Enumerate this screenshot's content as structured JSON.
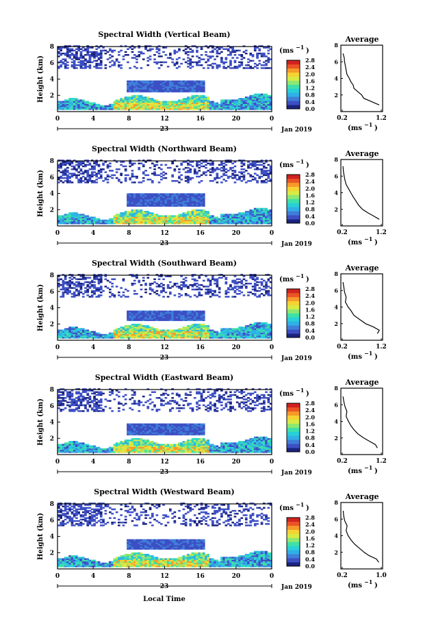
{
  "figure": {
    "xlabel": "Local Time",
    "ylabel": "Height (km)",
    "unit_label": "(ms",
    "unit_exp": "−1",
    "unit_close": ")",
    "date_label": "Jan 2019",
    "day_label": "23",
    "avg_title": "Average",
    "colormap": [
      "#1a237e",
      "#3d4fc4",
      "#3f7fd8",
      "#2fb0e6",
      "#28d0d8",
      "#3fe0a8",
      "#8ee870",
      "#d8ea44",
      "#f6d232",
      "#f69a2a",
      "#ec5426",
      "#d0231f"
    ]
  },
  "chart_data": [
    {
      "type": "heatmap",
      "title": "Spectral Width (Vertical Beam)",
      "xlim": [
        0,
        24
      ],
      "ylim": [
        0,
        8
      ],
      "xticks": [
        "0",
        "4",
        "8",
        "12",
        "16",
        "20",
        "0"
      ],
      "yticks": [
        "2",
        "4",
        "6",
        "8"
      ],
      "colorbar": {
        "ticks": [
          "0.0",
          "0.4",
          "0.8",
          "1.2",
          "1.6",
          "2.0",
          "2.4",
          "2.8"
        ],
        "range": [
          0,
          2.8
        ]
      },
      "profile": {
        "xlim": [
          0.2,
          1.2
        ],
        "xticks": [
          "0.2",
          "1.2"
        ],
        "xlabel": "(ms",
        "yticks": [
          "2",
          "4",
          "6",
          "8"
        ],
        "points": [
          [
            1.15,
            0.8
          ],
          [
            1.05,
            1.0
          ],
          [
            0.9,
            1.3
          ],
          [
            0.75,
            1.6
          ],
          [
            0.7,
            2.0
          ],
          [
            0.6,
            2.4
          ],
          [
            0.5,
            2.8
          ],
          [
            0.48,
            3.2
          ],
          [
            0.42,
            3.6
          ],
          [
            0.38,
            4.0
          ],
          [
            0.32,
            4.5
          ],
          [
            0.3,
            5.0
          ],
          [
            0.28,
            5.5
          ],
          [
            0.26,
            6.0
          ],
          [
            0.25,
            6.5
          ],
          [
            0.22,
            7.0
          ]
        ]
      }
    },
    {
      "type": "heatmap",
      "title": "Spectral Width (Northward Beam)",
      "xlim": [
        0,
        24
      ],
      "ylim": [
        0,
        8
      ],
      "xticks": [
        "0",
        "4",
        "8",
        "12",
        "16",
        "20",
        "0"
      ],
      "yticks": [
        "2",
        "4",
        "6",
        "8"
      ],
      "colorbar": {
        "ticks": [
          "0.0",
          "0.4",
          "0.8",
          "1.2",
          "1.6",
          "2.0",
          "2.4",
          "2.8"
        ],
        "range": [
          0,
          2.8
        ]
      },
      "profile": {
        "xlim": [
          0.2,
          1.2
        ],
        "xticks": [
          "0.2",
          "1.2"
        ],
        "xlabel": "(ms",
        "yticks": [
          "2",
          "4",
          "6",
          "8"
        ],
        "points": [
          [
            1.15,
            0.8
          ],
          [
            1.0,
            1.2
          ],
          [
            0.85,
            1.6
          ],
          [
            0.72,
            2.0
          ],
          [
            0.62,
            2.5
          ],
          [
            0.55,
            3.0
          ],
          [
            0.48,
            3.5
          ],
          [
            0.42,
            4.0
          ],
          [
            0.36,
            4.5
          ],
          [
            0.3,
            5.0
          ],
          [
            0.27,
            5.5
          ],
          [
            0.25,
            6.0
          ],
          [
            0.23,
            6.6
          ],
          [
            0.22,
            7.2
          ]
        ]
      }
    },
    {
      "type": "heatmap",
      "title": "Spectral Width (Southward Beam)",
      "xlim": [
        0,
        24
      ],
      "ylim": [
        0,
        8
      ],
      "xticks": [
        "0",
        "4",
        "8",
        "12",
        "16",
        "20",
        "0"
      ],
      "yticks": [
        "2",
        "4",
        "6",
        "8"
      ],
      "colorbar": {
        "ticks": [
          "0.0",
          "0.4",
          "0.8",
          "1.2",
          "1.6",
          "2.0",
          "2.4",
          "2.8"
        ],
        "range": [
          0,
          2.8
        ]
      },
      "profile": {
        "xlim": [
          0.2,
          1.2
        ],
        "xticks": [
          "0.2",
          "1.2"
        ],
        "xlabel": "(ms",
        "yticks": [
          "2",
          "4",
          "6",
          "8"
        ],
        "points": [
          [
            1.1,
            0.8
          ],
          [
            1.15,
            1.2
          ],
          [
            1.0,
            1.6
          ],
          [
            0.8,
            2.0
          ],
          [
            0.65,
            2.5
          ],
          [
            0.5,
            3.0
          ],
          [
            0.42,
            3.6
          ],
          [
            0.35,
            4.0
          ],
          [
            0.28,
            4.6
          ],
          [
            0.3,
            5.2
          ],
          [
            0.26,
            5.8
          ],
          [
            0.24,
            6.4
          ],
          [
            0.22,
            7.0
          ]
        ]
      }
    },
    {
      "type": "heatmap",
      "title": "Spectral Width (Eastward Beam)",
      "xlim": [
        0,
        24
      ],
      "ylim": [
        0,
        8
      ],
      "xticks": [
        "0",
        "4",
        "8",
        "12",
        "16",
        "20",
        "0"
      ],
      "yticks": [
        "2",
        "4",
        "6",
        "8"
      ],
      "colorbar": {
        "ticks": [
          "0.0",
          "0.4",
          "0.8",
          "1.2",
          "1.6",
          "2.0",
          "2.4",
          "2.8"
        ],
        "range": [
          0,
          2.8
        ]
      },
      "profile": {
        "xlim": [
          0.2,
          1.2
        ],
        "xticks": [
          "0.2",
          "1.2"
        ],
        "xlabel": "(ms",
        "yticks": [
          "2",
          "4",
          "6",
          "8"
        ],
        "points": [
          [
            1.1,
            0.8
          ],
          [
            1.05,
            1.2
          ],
          [
            0.9,
            1.6
          ],
          [
            0.75,
            2.0
          ],
          [
            0.6,
            2.5
          ],
          [
            0.5,
            3.0
          ],
          [
            0.42,
            3.5
          ],
          [
            0.36,
            4.0
          ],
          [
            0.3,
            4.6
          ],
          [
            0.32,
            5.2
          ],
          [
            0.27,
            5.8
          ],
          [
            0.24,
            6.4
          ],
          [
            0.22,
            7.0
          ]
        ]
      }
    },
    {
      "type": "heatmap",
      "title": "Spectral Width (Westward Beam)",
      "xlim": [
        0,
        24
      ],
      "ylim": [
        0,
        8
      ],
      "xticks": [
        "0",
        "4",
        "8",
        "12",
        "16",
        "20",
        "0"
      ],
      "yticks": [
        "2",
        "4",
        "6",
        "8"
      ],
      "colorbar": {
        "ticks": [
          "0.0",
          "0.4",
          "0.8",
          "1.2",
          "1.6",
          "2.0",
          "2.4",
          "2.8"
        ],
        "range": [
          0,
          2.8
        ]
      },
      "profile": {
        "xlim": [
          0.2,
          1.0
        ],
        "xticks": [
          "0.2",
          "1.0"
        ],
        "xlabel": "(ms",
        "yticks": [
          "2",
          "4",
          "6",
          "8"
        ],
        "points": [
          [
            0.95,
            0.8
          ],
          [
            0.9,
            1.2
          ],
          [
            0.75,
            1.6
          ],
          [
            0.65,
            2.0
          ],
          [
            0.55,
            2.5
          ],
          [
            0.45,
            3.0
          ],
          [
            0.38,
            3.5
          ],
          [
            0.32,
            4.0
          ],
          [
            0.28,
            4.6
          ],
          [
            0.3,
            5.2
          ],
          [
            0.25,
            5.8
          ],
          [
            0.23,
            6.4
          ],
          [
            0.22,
            7.0
          ]
        ]
      }
    }
  ]
}
